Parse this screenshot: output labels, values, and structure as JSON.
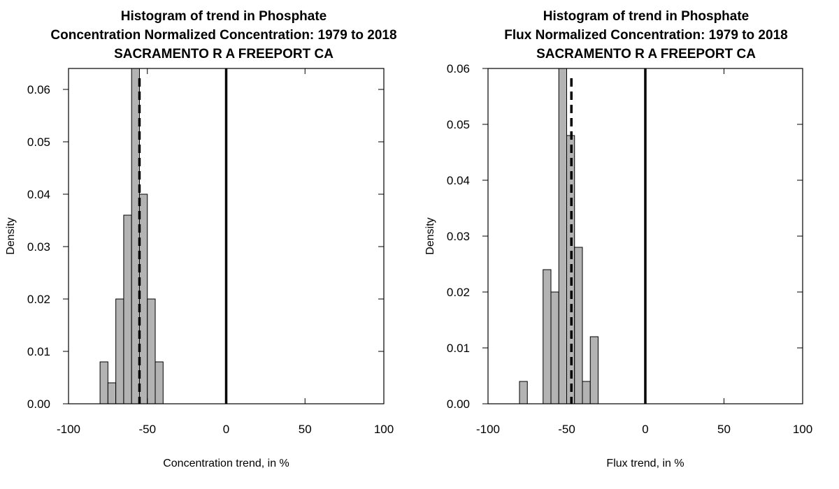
{
  "chart_data": [
    {
      "type": "bar",
      "title": [
        "Histogram of trend in Phosphate",
        "Concentration Normalized Concentration: 1979 to 2018",
        "SACRAMENTO R A FREEPORT CA"
      ],
      "xlabel": "Concentration trend, in %",
      "ylabel": "Density",
      "xlim": [
        -100,
        100
      ],
      "ylim": [
        0,
        0.064
      ],
      "x_ticks": [
        "-100",
        "-50",
        "0",
        "50",
        "100"
      ],
      "y_ticks": [
        "0.00",
        "0.01",
        "0.02",
        "0.03",
        "0.04",
        "0.05",
        "0.06"
      ],
      "bin_width": 5,
      "bins": [
        {
          "start": -80,
          "density": 0.008
        },
        {
          "start": -75,
          "density": 0.004
        },
        {
          "start": -70,
          "density": 0.02
        },
        {
          "start": -65,
          "density": 0.036
        },
        {
          "start": -60,
          "density": 0.064
        },
        {
          "start": -55,
          "density": 0.04
        },
        {
          "start": -50,
          "density": 0.02
        },
        {
          "start": -45,
          "density": 0.008
        }
      ],
      "reference_line": 0,
      "dashed_line": -55,
      "bar_color": "#b3b3b3"
    },
    {
      "type": "bar",
      "title": [
        "Histogram of trend in Phosphate",
        "Flux Normalized Concentration: 1979 to 2018",
        "SACRAMENTO R A FREEPORT CA"
      ],
      "xlabel": "Flux trend, in %",
      "ylabel": "Density",
      "xlim": [
        -100,
        100
      ],
      "ylim": [
        0,
        0.06
      ],
      "x_ticks": [
        "-100",
        "-50",
        "0",
        "50",
        "100"
      ],
      "y_ticks": [
        "0.00",
        "0.01",
        "0.02",
        "0.03",
        "0.04",
        "0.05",
        "0.06"
      ],
      "bin_width": 5,
      "bins": [
        {
          "start": -80,
          "density": 0.004
        },
        {
          "start": -75,
          "density": 0.0
        },
        {
          "start": -70,
          "density": 0.0
        },
        {
          "start": -65,
          "density": 0.024
        },
        {
          "start": -60,
          "density": 0.02
        },
        {
          "start": -55,
          "density": 0.06
        },
        {
          "start": -50,
          "density": 0.048
        },
        {
          "start": -45,
          "density": 0.028
        },
        {
          "start": -40,
          "density": 0.004
        },
        {
          "start": -35,
          "density": 0.012
        }
      ],
      "reference_line": 0,
      "dashed_line": -47,
      "bar_color": "#b3b3b3"
    }
  ]
}
